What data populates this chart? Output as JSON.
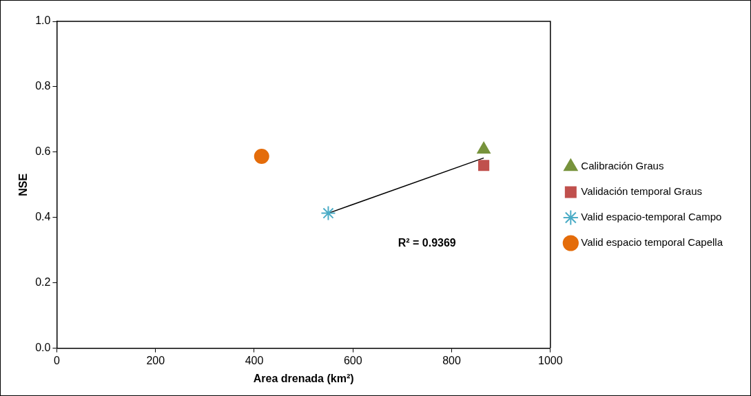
{
  "chart_data": {
    "type": "scatter",
    "xlabel": "Area drenada (km²)",
    "ylabel": "NSE",
    "xlim": [
      0,
      1000
    ],
    "xticks": [
      0,
      200,
      400,
      600,
      800,
      1000
    ],
    "ylim": [
      0,
      1
    ],
    "yticks": [
      {
        "value": 0,
        "label": "0.0"
      },
      {
        "value": 0.2,
        "label": "0.2"
      },
      {
        "value": 0.4,
        "label": "0.4"
      },
      {
        "value": 0.6,
        "label": "0.6"
      },
      {
        "value": 0.8,
        "label": "0.8"
      },
      {
        "value": 1,
        "label": "1.0"
      }
    ],
    "grid": false,
    "legend": "right",
    "series": [
      {
        "name": "Calibración Graus",
        "color": "#77933c",
        "marker": "triangle",
        "x": [
          865
        ],
        "values": [
          0.608
        ]
      },
      {
        "name": "Validación temporal Graus",
        "color": "#c0504d",
        "marker": "square",
        "x": [
          865
        ],
        "values": [
          0.559
        ]
      },
      {
        "name": "Valid espacio-temporal Campo",
        "color": "#4bacc6",
        "marker": "cross",
        "x": [
          550
        ],
        "values": [
          0.413
        ]
      },
      {
        "name": "Valid espacio temporal Capella",
        "color": "#e46c0a",
        "marker": "circle",
        "x": [
          415
        ],
        "values": [
          0.587
        ]
      },
      {
        "type": "line",
        "color": "#000000",
        "marker": "none",
        "x": [
          550,
          865
        ],
        "values": [
          0.413,
          0.582
        ]
      }
    ],
    "annotations": [
      "R² = 0.9369"
    ]
  }
}
